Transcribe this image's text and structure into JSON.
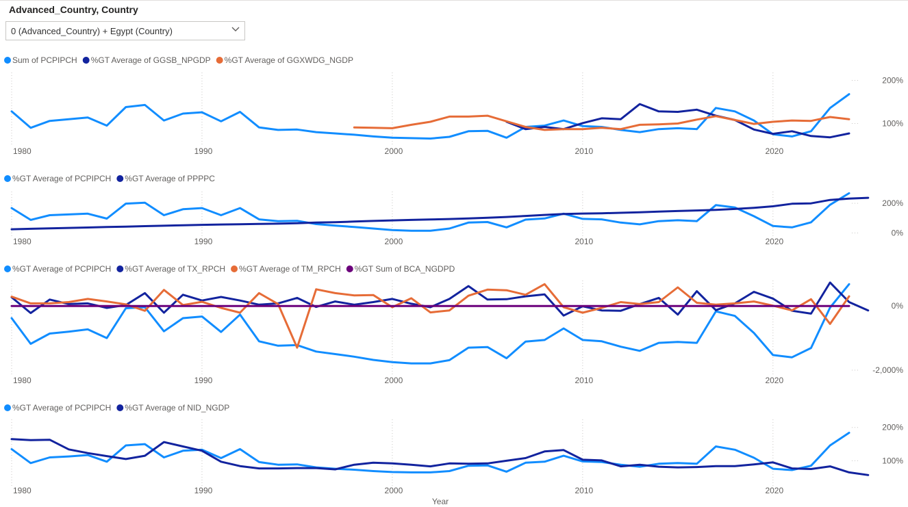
{
  "slicer": {
    "title": "Advanced_Country, Country",
    "selected": "0 (Advanced_Country) + Egypt (Country)"
  },
  "colors": {
    "light_blue": "#118DFF",
    "dark_blue": "#12239E",
    "orange": "#E66C37",
    "purple": "#6B007B"
  },
  "chart_data": [
    {
      "type": "line",
      "legend_position": "top-left",
      "xlabel": "",
      "x_ticks": [
        "1980",
        "1990",
        "2000",
        "2010",
        "2020"
      ],
      "xlim": [
        1980,
        2024
      ],
      "y_ticks": [
        {
          "value": 200,
          "label": "200%"
        },
        {
          "value": 100,
          "label": "100%"
        }
      ],
      "ylim": [
        50,
        215
      ],
      "series": [
        {
          "name": "Sum of PCPIPCH",
          "color": "#118DFF",
          "start": 1980,
          "values": [
            128,
            90,
            106,
            110,
            114,
            95,
            138,
            143,
            107,
            123,
            126,
            105,
            127,
            91,
            85,
            86,
            80,
            77,
            74,
            70,
            67,
            66,
            65,
            69,
            82,
            83,
            67,
            92,
            95,
            107,
            94,
            92,
            85,
            80,
            87,
            89,
            87,
            136,
            128,
            107,
            75,
            70,
            82,
            136,
            168
          ]
        },
        {
          "name": "%GT Average of GGSB_NPGDP",
          "color": "#12239E",
          "start": 2006,
          "values": [
            104,
            87,
            92,
            87,
            101,
            112,
            110,
            145,
            128,
            127,
            132,
            118,
            108,
            86,
            76,
            82,
            71,
            68,
            77
          ]
        },
        {
          "name": "%GT Average of GGXWDG_NGDP",
          "color": "#E66C37",
          "start": 1998,
          "values": [
            91,
            90,
            89,
            97,
            104,
            116,
            116,
            118,
            105,
            92,
            85,
            87,
            87,
            90,
            87,
            97,
            98,
            100,
            109,
            117,
            108,
            99,
            104,
            107,
            106,
            115,
            110
          ]
        }
      ]
    },
    {
      "type": "line",
      "legend_position": "top-left",
      "xlabel": "",
      "x_ticks": [
        "1980",
        "1990",
        "2000",
        "2010",
        "2020"
      ],
      "xlim": [
        1980,
        2024
      ],
      "y_ticks": [
        {
          "value": 200,
          "label": "200%"
        },
        {
          "value": 0,
          "label": "0%"
        }
      ],
      "ylim": [
        -30,
        270
      ],
      "series": [
        {
          "name": "%GT Average of PCPIPCH",
          "color": "#118DFF",
          "start": 1980,
          "values": [
            168,
            88,
            120,
            125,
            130,
            97,
            198,
            204,
            120,
            160,
            168,
            120,
            168,
            92,
            80,
            82,
            60,
            50,
            40,
            30,
            20,
            15,
            15,
            30,
            70,
            74,
            38,
            90,
            98,
            130,
            95,
            92,
            70,
            58,
            80,
            86,
            80,
            188,
            172,
            113,
            47,
            38,
            72,
            190,
            268
          ]
        },
        {
          "name": "%GT Average of PPPPC",
          "color": "#12239E",
          "start": 1980,
          "values": [
            25,
            28,
            31,
            34,
            37,
            40,
            43,
            46,
            49,
            52,
            55,
            57,
            59,
            61,
            63,
            66,
            70,
            73,
            77,
            81,
            85,
            88,
            91,
            94,
            98,
            103,
            108,
            115,
            122,
            128,
            131,
            133,
            136,
            140,
            144,
            148,
            152,
            156,
            162,
            170,
            180,
            197,
            200,
            223,
            232,
            237
          ]
        }
      ]
    },
    {
      "type": "line",
      "legend_position": "top-left",
      "xlabel": "",
      "x_ticks": [
        "1980",
        "1990",
        "2000",
        "2010",
        "2020"
      ],
      "xlim": [
        1980,
        2024
      ],
      "y_ticks": [
        {
          "value": 0,
          "label": "0%"
        },
        {
          "value": -2000,
          "label": "-2,000%"
        }
      ],
      "ylim": [
        -2150,
        750
      ],
      "series": [
        {
          "name": "%GT Average of PCPIPCH",
          "color": "#118DFF",
          "start": 1980,
          "values": [
            -380,
            -1180,
            -860,
            -800,
            -730,
            -1000,
            -70,
            -40,
            -790,
            -380,
            -330,
            -810,
            -270,
            -1100,
            -1240,
            -1220,
            -1420,
            -1500,
            -1580,
            -1680,
            -1750,
            -1790,
            -1790,
            -1690,
            -1300,
            -1280,
            -1630,
            -1110,
            -1060,
            -700,
            -1060,
            -1100,
            -1270,
            -1400,
            -1150,
            -1120,
            -1150,
            -170,
            -310,
            -840,
            -1530,
            -1600,
            -1310,
            -50,
            680
          ]
        },
        {
          "name": "%GT Average of TX_RPCH",
          "color": "#12239E",
          "start": 1980,
          "values": [
            270,
            -220,
            200,
            60,
            80,
            -60,
            30,
            400,
            -210,
            350,
            170,
            280,
            170,
            40,
            80,
            250,
            -30,
            140,
            40,
            120,
            220,
            70,
            -40,
            220,
            620,
            200,
            210,
            300,
            360,
            -300,
            -10,
            -140,
            -150,
            60,
            250,
            -270,
            460,
            -130,
            80,
            440,
            230,
            -150,
            -240,
            730,
            120,
            -140
          ]
        },
        {
          "name": "%GT Average of TM_RPCH",
          "color": "#E66C37",
          "start": 1980,
          "values": [
            290,
            80,
            80,
            120,
            220,
            140,
            50,
            -150,
            500,
            30,
            130,
            -60,
            -210,
            400,
            60,
            -1300,
            520,
            400,
            330,
            340,
            -40,
            240,
            -200,
            -140,
            320,
            510,
            490,
            350,
            680,
            -40,
            -210,
            -60,
            120,
            60,
            120,
            580,
            100,
            40,
            80,
            140,
            10,
            -140,
            210,
            -560,
            300
          ]
        },
        {
          "name": "%GT Sum of BCA_NGDPD",
          "color": "#6B007B",
          "start": 1980,
          "values": [
            0,
            0,
            0,
            0,
            0,
            0,
            0,
            0,
            0,
            0,
            0,
            0,
            0,
            0,
            0,
            0,
            0,
            0,
            0,
            0,
            0,
            0,
            0,
            0,
            0,
            0,
            0,
            0,
            0,
            0,
            0,
            0,
            0,
            0,
            0,
            0,
            0,
            0,
            0,
            0,
            0,
            0,
            0,
            0,
            0
          ]
        }
      ]
    },
    {
      "type": "line",
      "legend_position": "top-left",
      "xlabel": "Year",
      "x_ticks": [
        "1980",
        "1990",
        "2000",
        "2010",
        "2020"
      ],
      "xlim": [
        1980,
        2024
      ],
      "y_ticks": [
        {
          "value": 200,
          "label": "200%"
        },
        {
          "value": 100,
          "label": "100%"
        }
      ],
      "ylim": [
        35,
        220
      ],
      "series": [
        {
          "name": "%GT Average of PCPIPCH",
          "color": "#118DFF",
          "start": 1980,
          "values": [
            135,
            93,
            110,
            113,
            117,
            97,
            146,
            150,
            110,
            130,
            133,
            108,
            135,
            96,
            88,
            89,
            80,
            76,
            73,
            69,
            66,
            65,
            65,
            69,
            85,
            86,
            67,
            94,
            97,
            115,
            98,
            96,
            88,
            82,
            91,
            93,
            91,
            143,
            133,
            109,
            76,
            72,
            85,
            146,
            184
          ]
        },
        {
          "name": "%GT Average of NID_NGDP",
          "color": "#12239E",
          "start": 1980,
          "values": [
            165,
            162,
            163,
            134,
            123,
            114,
            105,
            115,
            156,
            143,
            130,
            97,
            84,
            77,
            77,
            78,
            78,
            74,
            88,
            94,
            92,
            88,
            83,
            92,
            91,
            92,
            100,
            108,
            128,
            132,
            103,
            101,
            83,
            88,
            82,
            80,
            81,
            84,
            84,
            89,
            95,
            77,
            75,
            83,
            65,
            57
          ]
        }
      ]
    }
  ]
}
